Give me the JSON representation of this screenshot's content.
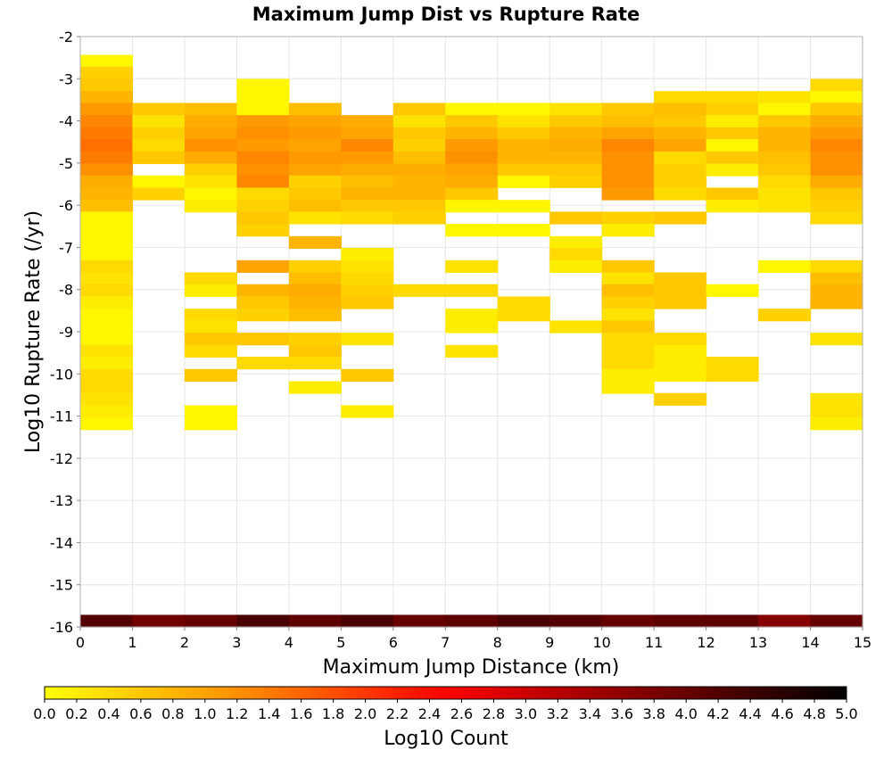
{
  "chart_data": {
    "type": "heatmap",
    "title": "Maximum Jump Dist vs Rupture Rate",
    "xlabel": "Maximum Jump Distance (km)",
    "ylabel": "Log10 Rupture Rate (/yr)",
    "xlim": [
      0,
      15
    ],
    "ylim": [
      -16,
      -2
    ],
    "x_ticks": [
      "0",
      "1",
      "2",
      "3",
      "4",
      "5",
      "6",
      "7",
      "8",
      "9",
      "10",
      "11",
      "12",
      "13",
      "14",
      "15"
    ],
    "y_ticks": [
      "-2",
      "-3",
      "-4",
      "-5",
      "-6",
      "-7",
      "-8",
      "-9",
      "-10",
      "-11",
      "-12",
      "-13",
      "-14",
      "-15",
      "-16"
    ],
    "grid": true,
    "x_bin_width": 1,
    "y_bin_height": 0.2864,
    "colorbar": {
      "label": "Log10 Count",
      "range": [
        0,
        5
      ],
      "ticks": [
        "0.0",
        "0.2",
        "0.4",
        "0.6",
        "0.8",
        "1.0",
        "1.2",
        "1.4",
        "1.6",
        "1.8",
        "2.0",
        "2.2",
        "2.4",
        "2.6",
        "2.8",
        "3.0",
        "3.2",
        "3.4",
        "3.6",
        "3.8",
        "4.0",
        "4.2",
        "4.4",
        "4.6",
        "4.8",
        "5.0"
      ],
      "colors": [
        "#ffff00",
        "#ff8c00",
        "#ff0000",
        "#800000",
        "#000000"
      ]
    },
    "bins": [
      {
        "x": 0,
        "y": -2.72,
        "v": 0.1
      },
      {
        "x": 0,
        "y": -3.0,
        "v": 0.5
      },
      {
        "x": 0,
        "y": -3.29,
        "v": 0.6
      },
      {
        "x": 0,
        "y": -3.58,
        "v": 0.8
      },
      {
        "x": 0,
        "y": -3.86,
        "v": 1.1
      },
      {
        "x": 0,
        "y": -4.15,
        "v": 1.3
      },
      {
        "x": 0,
        "y": -4.44,
        "v": 1.4
      },
      {
        "x": 0,
        "y": -4.72,
        "v": 1.5
      },
      {
        "x": 0,
        "y": -5.01,
        "v": 1.4
      },
      {
        "x": 0,
        "y": -5.3,
        "v": 1.2
      },
      {
        "x": 0,
        "y": -5.58,
        "v": 0.9
      },
      {
        "x": 0,
        "y": -5.87,
        "v": 0.8
      },
      {
        "x": 0,
        "y": -6.16,
        "v": 0.7
      },
      {
        "x": 0,
        "y": -6.44,
        "v": 0.1
      },
      {
        "x": 0,
        "y": -6.73,
        "v": 0.1
      },
      {
        "x": 0,
        "y": -7.02,
        "v": 0.1
      },
      {
        "x": 0,
        "y": -7.3,
        "v": 0.1
      },
      {
        "x": 0,
        "y": -7.59,
        "v": 0.4
      },
      {
        "x": 0,
        "y": -7.88,
        "v": 0.3
      },
      {
        "x": 0,
        "y": -8.16,
        "v": 0.4
      },
      {
        "x": 0,
        "y": -8.45,
        "v": 0.2
      },
      {
        "x": 0,
        "y": -8.74,
        "v": 0.1
      },
      {
        "x": 0,
        "y": -9.02,
        "v": 0.1
      },
      {
        "x": 0,
        "y": -9.31,
        "v": 0.1
      },
      {
        "x": 0,
        "y": -9.6,
        "v": 0.3
      },
      {
        "x": 0,
        "y": -9.88,
        "v": 0.2
      },
      {
        "x": 0,
        "y": -10.17,
        "v": 0.4
      },
      {
        "x": 0,
        "y": -10.46,
        "v": 0.4
      },
      {
        "x": 0,
        "y": -10.74,
        "v": 0.3
      },
      {
        "x": 0,
        "y": -11.03,
        "v": 0.2
      },
      {
        "x": 0,
        "y": -11.32,
        "v": 0.1
      },
      {
        "x": 1,
        "y": -3.86,
        "v": 0.6
      },
      {
        "x": 1,
        "y": -4.15,
        "v": 0.3
      },
      {
        "x": 1,
        "y": -4.44,
        "v": 0.5
      },
      {
        "x": 1,
        "y": -4.72,
        "v": 0.4
      },
      {
        "x": 1,
        "y": -5.01,
        "v": 0.6
      },
      {
        "x": 1,
        "y": -5.58,
        "v": 0.1
      },
      {
        "x": 1,
        "y": -5.87,
        "v": 0.5
      },
      {
        "x": 2,
        "y": -3.86,
        "v": 0.7
      },
      {
        "x": 2,
        "y": -4.15,
        "v": 0.9
      },
      {
        "x": 2,
        "y": -4.44,
        "v": 1.0
      },
      {
        "x": 2,
        "y": -4.72,
        "v": 1.2
      },
      {
        "x": 2,
        "y": -5.01,
        "v": 0.9
      },
      {
        "x": 2,
        "y": -5.3,
        "v": 0.5
      },
      {
        "x": 2,
        "y": -5.58,
        "v": 0.3
      },
      {
        "x": 2,
        "y": -5.87,
        "v": 0.1
      },
      {
        "x": 2,
        "y": -6.16,
        "v": 0.2
      },
      {
        "x": 2,
        "y": -7.88,
        "v": 0.4
      },
      {
        "x": 2,
        "y": -8.16,
        "v": 0.2
      },
      {
        "x": 2,
        "y": -8.74,
        "v": 0.4
      },
      {
        "x": 2,
        "y": -9.02,
        "v": 0.3
      },
      {
        "x": 2,
        "y": -9.31,
        "v": 0.6
      },
      {
        "x": 2,
        "y": -9.6,
        "v": 0.4
      },
      {
        "x": 2,
        "y": -10.17,
        "v": 0.6
      },
      {
        "x": 2,
        "y": -11.03,
        "v": 0.1
      },
      {
        "x": 2,
        "y": -11.32,
        "v": 0.1
      },
      {
        "x": 3,
        "y": -3.29,
        "v": 0.1
      },
      {
        "x": 3,
        "y": -3.58,
        "v": 0.1
      },
      {
        "x": 3,
        "y": -3.86,
        "v": 0.1
      },
      {
        "x": 3,
        "y": -4.15,
        "v": 1.1
      },
      {
        "x": 3,
        "y": -4.44,
        "v": 1.2
      },
      {
        "x": 3,
        "y": -4.72,
        "v": 1.1
      },
      {
        "x": 3,
        "y": -5.01,
        "v": 1.3
      },
      {
        "x": 3,
        "y": -5.3,
        "v": 1.2
      },
      {
        "x": 3,
        "y": -5.58,
        "v": 1.3
      },
      {
        "x": 3,
        "y": -5.87,
        "v": 0.4
      },
      {
        "x": 3,
        "y": -6.16,
        "v": 0.5
      },
      {
        "x": 3,
        "y": -6.44,
        "v": 0.6
      },
      {
        "x": 3,
        "y": -6.73,
        "v": 0.5
      },
      {
        "x": 3,
        "y": -7.59,
        "v": 1.0
      },
      {
        "x": 3,
        "y": -8.16,
        "v": 0.8
      },
      {
        "x": 3,
        "y": -8.45,
        "v": 0.6
      },
      {
        "x": 3,
        "y": -8.74,
        "v": 0.5
      },
      {
        "x": 3,
        "y": -9.31,
        "v": 0.6
      },
      {
        "x": 3,
        "y": -9.88,
        "v": 0.4
      },
      {
        "x": 4,
        "y": -3.86,
        "v": 0.7
      },
      {
        "x": 4,
        "y": -4.15,
        "v": 1.0
      },
      {
        "x": 4,
        "y": -4.44,
        "v": 1.1
      },
      {
        "x": 4,
        "y": -4.72,
        "v": 1.0
      },
      {
        "x": 4,
        "y": -5.01,
        "v": 1.1
      },
      {
        "x": 4,
        "y": -5.3,
        "v": 1.0
      },
      {
        "x": 4,
        "y": -5.58,
        "v": 0.5
      },
      {
        "x": 4,
        "y": -5.87,
        "v": 0.6
      },
      {
        "x": 4,
        "y": -6.16,
        "v": 0.7
      },
      {
        "x": 4,
        "y": -6.44,
        "v": 0.3
      },
      {
        "x": 4,
        "y": -7.02,
        "v": 0.8
      },
      {
        "x": 4,
        "y": -7.59,
        "v": 0.5
      },
      {
        "x": 4,
        "y": -7.88,
        "v": 0.7
      },
      {
        "x": 4,
        "y": -8.16,
        "v": 0.9
      },
      {
        "x": 4,
        "y": -8.45,
        "v": 0.8
      },
      {
        "x": 4,
        "y": -8.74,
        "v": 0.7
      },
      {
        "x": 4,
        "y": -9.31,
        "v": 0.5
      },
      {
        "x": 4,
        "y": -9.6,
        "v": 0.6
      },
      {
        "x": 4,
        "y": -9.88,
        "v": 0.4
      },
      {
        "x": 4,
        "y": -10.46,
        "v": 0.2
      },
      {
        "x": 5,
        "y": -4.15,
        "v": 0.9
      },
      {
        "x": 5,
        "y": -4.44,
        "v": 1.0
      },
      {
        "x": 5,
        "y": -4.72,
        "v": 1.3
      },
      {
        "x": 5,
        "y": -5.01,
        "v": 1.1
      },
      {
        "x": 5,
        "y": -5.3,
        "v": 0.9
      },
      {
        "x": 5,
        "y": -5.58,
        "v": 0.7
      },
      {
        "x": 5,
        "y": -5.87,
        "v": 0.8
      },
      {
        "x": 5,
        "y": -6.16,
        "v": 0.6
      },
      {
        "x": 5,
        "y": -6.44,
        "v": 0.4
      },
      {
        "x": 5,
        "y": -7.3,
        "v": 0.2
      },
      {
        "x": 5,
        "y": -7.59,
        "v": 0.3
      },
      {
        "x": 5,
        "y": -7.88,
        "v": 0.4
      },
      {
        "x": 5,
        "y": -8.16,
        "v": 0.5
      },
      {
        "x": 5,
        "y": -8.45,
        "v": 0.6
      },
      {
        "x": 5,
        "y": -9.31,
        "v": 0.3
      },
      {
        "x": 5,
        "y": -10.17,
        "v": 0.6
      },
      {
        "x": 5,
        "y": -11.03,
        "v": 0.2
      },
      {
        "x": 6,
        "y": -3.86,
        "v": 0.6
      },
      {
        "x": 6,
        "y": -4.15,
        "v": 0.3
      },
      {
        "x": 6,
        "y": -4.44,
        "v": 0.6
      },
      {
        "x": 6,
        "y": -4.72,
        "v": 0.5
      },
      {
        "x": 6,
        "y": -5.01,
        "v": 0.7
      },
      {
        "x": 6,
        "y": -5.3,
        "v": 0.9
      },
      {
        "x": 6,
        "y": -5.58,
        "v": 0.8
      },
      {
        "x": 6,
        "y": -5.87,
        "v": 0.8
      },
      {
        "x": 6,
        "y": -6.16,
        "v": 0.6
      },
      {
        "x": 6,
        "y": -6.44,
        "v": 0.5
      },
      {
        "x": 6,
        "y": -8.16,
        "v": 0.4
      },
      {
        "x": 7,
        "y": -3.86,
        "v": 0.1
      },
      {
        "x": 7,
        "y": -4.15,
        "v": 0.6
      },
      {
        "x": 7,
        "y": -4.44,
        "v": 0.8
      },
      {
        "x": 7,
        "y": -4.72,
        "v": 1.1
      },
      {
        "x": 7,
        "y": -5.01,
        "v": 1.2
      },
      {
        "x": 7,
        "y": -5.3,
        "v": 1.0
      },
      {
        "x": 7,
        "y": -5.58,
        "v": 0.9
      },
      {
        "x": 7,
        "y": -5.87,
        "v": 0.6
      },
      {
        "x": 7,
        "y": -6.16,
        "v": 0.1
      },
      {
        "x": 7,
        "y": -6.73,
        "v": 0.1
      },
      {
        "x": 7,
        "y": -7.59,
        "v": 0.3
      },
      {
        "x": 7,
        "y": -8.16,
        "v": 0.4
      },
      {
        "x": 7,
        "y": -8.74,
        "v": 0.2
      },
      {
        "x": 7,
        "y": -9.02,
        "v": 0.2
      },
      {
        "x": 7,
        "y": -9.6,
        "v": 0.3
      },
      {
        "x": 8,
        "y": -3.86,
        "v": 0.1
      },
      {
        "x": 8,
        "y": -4.15,
        "v": 0.3
      },
      {
        "x": 8,
        "y": -4.44,
        "v": 0.6
      },
      {
        "x": 8,
        "y": -4.72,
        "v": 0.8
      },
      {
        "x": 8,
        "y": -5.01,
        "v": 0.8
      },
      {
        "x": 8,
        "y": -5.3,
        "v": 0.6
      },
      {
        "x": 8,
        "y": -5.58,
        "v": 0.1
      },
      {
        "x": 8,
        "y": -6.16,
        "v": 0.1
      },
      {
        "x": 8,
        "y": -6.73,
        "v": 0.1
      },
      {
        "x": 8,
        "y": -8.45,
        "v": 0.4
      },
      {
        "x": 8,
        "y": -8.74,
        "v": 0.4
      },
      {
        "x": 9,
        "y": -3.86,
        "v": 0.3
      },
      {
        "x": 9,
        "y": -4.15,
        "v": 0.6
      },
      {
        "x": 9,
        "y": -4.44,
        "v": 0.8
      },
      {
        "x": 9,
        "y": -4.72,
        "v": 0.9
      },
      {
        "x": 9,
        "y": -5.01,
        "v": 0.8
      },
      {
        "x": 9,
        "y": -5.3,
        "v": 0.6
      },
      {
        "x": 9,
        "y": -5.58,
        "v": 0.5
      },
      {
        "x": 9,
        "y": -6.44,
        "v": 0.6
      },
      {
        "x": 9,
        "y": -7.02,
        "v": 0.2
      },
      {
        "x": 9,
        "y": -7.3,
        "v": 0.4
      },
      {
        "x": 9,
        "y": -7.59,
        "v": 0.2
      },
      {
        "x": 9,
        "y": -9.02,
        "v": 0.3
      },
      {
        "x": 10,
        "y": -3.86,
        "v": 0.6
      },
      {
        "x": 10,
        "y": -4.15,
        "v": 0.7
      },
      {
        "x": 10,
        "y": -4.44,
        "v": 1.0
      },
      {
        "x": 10,
        "y": -4.72,
        "v": 1.3
      },
      {
        "x": 10,
        "y": -5.01,
        "v": 1.2
      },
      {
        "x": 10,
        "y": -5.3,
        "v": 1.2
      },
      {
        "x": 10,
        "y": -5.58,
        "v": 1.2
      },
      {
        "x": 10,
        "y": -5.87,
        "v": 1.1
      },
      {
        "x": 10,
        "y": -6.44,
        "v": 0.5
      },
      {
        "x": 10,
        "y": -6.73,
        "v": 0.2
      },
      {
        "x": 10,
        "y": -7.59,
        "v": 0.6
      },
      {
        "x": 10,
        "y": -7.88,
        "v": 0.3
      },
      {
        "x": 10,
        "y": -8.16,
        "v": 0.7
      },
      {
        "x": 10,
        "y": -8.45,
        "v": 0.5
      },
      {
        "x": 10,
        "y": -8.74,
        "v": 0.3
      },
      {
        "x": 10,
        "y": -9.02,
        "v": 0.6
      },
      {
        "x": 10,
        "y": -9.31,
        "v": 0.4
      },
      {
        "x": 10,
        "y": -9.6,
        "v": 0.4
      },
      {
        "x": 10,
        "y": -9.88,
        "v": 0.4
      },
      {
        "x": 10,
        "y": -10.17,
        "v": 0.2
      },
      {
        "x": 10,
        "y": -10.46,
        "v": 0.2
      },
      {
        "x": 11,
        "y": -3.58,
        "v": 0.4
      },
      {
        "x": 11,
        "y": -3.86,
        "v": 0.7
      },
      {
        "x": 11,
        "y": -4.15,
        "v": 0.6
      },
      {
        "x": 11,
        "y": -4.44,
        "v": 0.8
      },
      {
        "x": 11,
        "y": -4.72,
        "v": 1.0
      },
      {
        "x": 11,
        "y": -5.01,
        "v": 0.4
      },
      {
        "x": 11,
        "y": -5.3,
        "v": 0.5
      },
      {
        "x": 11,
        "y": -5.58,
        "v": 0.5
      },
      {
        "x": 11,
        "y": -5.87,
        "v": 0.4
      },
      {
        "x": 11,
        "y": -6.44,
        "v": 0.6
      },
      {
        "x": 11,
        "y": -7.88,
        "v": 0.6
      },
      {
        "x": 11,
        "y": -8.16,
        "v": 0.6
      },
      {
        "x": 11,
        "y": -8.45,
        "v": 0.6
      },
      {
        "x": 11,
        "y": -9.31,
        "v": 0.4
      },
      {
        "x": 11,
        "y": -9.6,
        "v": 0.2
      },
      {
        "x": 11,
        "y": -9.88,
        "v": 0.2
      },
      {
        "x": 11,
        "y": -10.17,
        "v": 0.2
      },
      {
        "x": 11,
        "y": -10.74,
        "v": 0.5
      },
      {
        "x": 12,
        "y": -3.58,
        "v": 0.4
      },
      {
        "x": 12,
        "y": -3.86,
        "v": 0.5
      },
      {
        "x": 12,
        "y": -4.15,
        "v": 0.2
      },
      {
        "x": 12,
        "y": -4.44,
        "v": 0.6
      },
      {
        "x": 12,
        "y": -4.72,
        "v": 0.1
      },
      {
        "x": 12,
        "y": -5.01,
        "v": 0.6
      },
      {
        "x": 12,
        "y": -5.3,
        "v": 0.2
      },
      {
        "x": 12,
        "y": -5.87,
        "v": 0.6
      },
      {
        "x": 12,
        "y": -6.16,
        "v": 0.2
      },
      {
        "x": 12,
        "y": -8.16,
        "v": 0.1
      },
      {
        "x": 12,
        "y": -9.88,
        "v": 0.4
      },
      {
        "x": 12,
        "y": -10.17,
        "v": 0.4
      },
      {
        "x": 13,
        "y": -3.58,
        "v": 0.3
      },
      {
        "x": 13,
        "y": -3.86,
        "v": 0.1
      },
      {
        "x": 13,
        "y": -4.15,
        "v": 0.6
      },
      {
        "x": 13,
        "y": -4.44,
        "v": 0.8
      },
      {
        "x": 13,
        "y": -4.72,
        "v": 0.8
      },
      {
        "x": 13,
        "y": -5.01,
        "v": 0.7
      },
      {
        "x": 13,
        "y": -5.3,
        "v": 0.6
      },
      {
        "x": 13,
        "y": -5.58,
        "v": 0.4
      },
      {
        "x": 13,
        "y": -5.87,
        "v": 0.3
      },
      {
        "x": 13,
        "y": -6.16,
        "v": 0.3
      },
      {
        "x": 13,
        "y": -7.59,
        "v": 0.1
      },
      {
        "x": 13,
        "y": -8.74,
        "v": 0.5
      },
      {
        "x": 14,
        "y": -3.29,
        "v": 0.4
      },
      {
        "x": 14,
        "y": -3.58,
        "v": 0.1
      },
      {
        "x": 14,
        "y": -3.86,
        "v": 0.6
      },
      {
        "x": 14,
        "y": -4.15,
        "v": 0.9
      },
      {
        "x": 14,
        "y": -4.44,
        "v": 1.1
      },
      {
        "x": 14,
        "y": -4.72,
        "v": 1.3
      },
      {
        "x": 14,
        "y": -5.01,
        "v": 1.2
      },
      {
        "x": 14,
        "y": -5.3,
        "v": 1.2
      },
      {
        "x": 14,
        "y": -5.58,
        "v": 0.9
      },
      {
        "x": 14,
        "y": -5.87,
        "v": 0.6
      },
      {
        "x": 14,
        "y": -6.16,
        "v": 0.5
      },
      {
        "x": 14,
        "y": -6.44,
        "v": 0.4
      },
      {
        "x": 14,
        "y": -7.59,
        "v": 0.4
      },
      {
        "x": 14,
        "y": -7.88,
        "v": 0.7
      },
      {
        "x": 14,
        "y": -8.16,
        "v": 0.8
      },
      {
        "x": 14,
        "y": -8.45,
        "v": 0.8
      },
      {
        "x": 14,
        "y": -9.31,
        "v": 0.3
      },
      {
        "x": 14,
        "y": -10.74,
        "v": 0.3
      },
      {
        "x": 14,
        "y": -11.03,
        "v": 0.3
      },
      {
        "x": 14,
        "y": -11.32,
        "v": 0.2
      },
      {
        "x": 0,
        "y": -16.0,
        "v": 4.2
      },
      {
        "x": 1,
        "y": -16.0,
        "v": 3.9
      },
      {
        "x": 2,
        "y": -16.0,
        "v": 4.0
      },
      {
        "x": 3,
        "y": -16.0,
        "v": 4.3
      },
      {
        "x": 4,
        "y": -16.0,
        "v": 4.1
      },
      {
        "x": 5,
        "y": -16.0,
        "v": 4.3
      },
      {
        "x": 6,
        "y": -16.0,
        "v": 4.0
      },
      {
        "x": 7,
        "y": -16.0,
        "v": 4.1
      },
      {
        "x": 8,
        "y": -16.0,
        "v": 4.3
      },
      {
        "x": 9,
        "y": -16.0,
        "v": 4.2
      },
      {
        "x": 10,
        "y": -16.0,
        "v": 4.0
      },
      {
        "x": 11,
        "y": -16.0,
        "v": 4.1
      },
      {
        "x": 12,
        "y": -16.0,
        "v": 4.1
      },
      {
        "x": 13,
        "y": -16.0,
        "v": 3.7
      },
      {
        "x": 14,
        "y": -16.0,
        "v": 4.0
      }
    ]
  }
}
